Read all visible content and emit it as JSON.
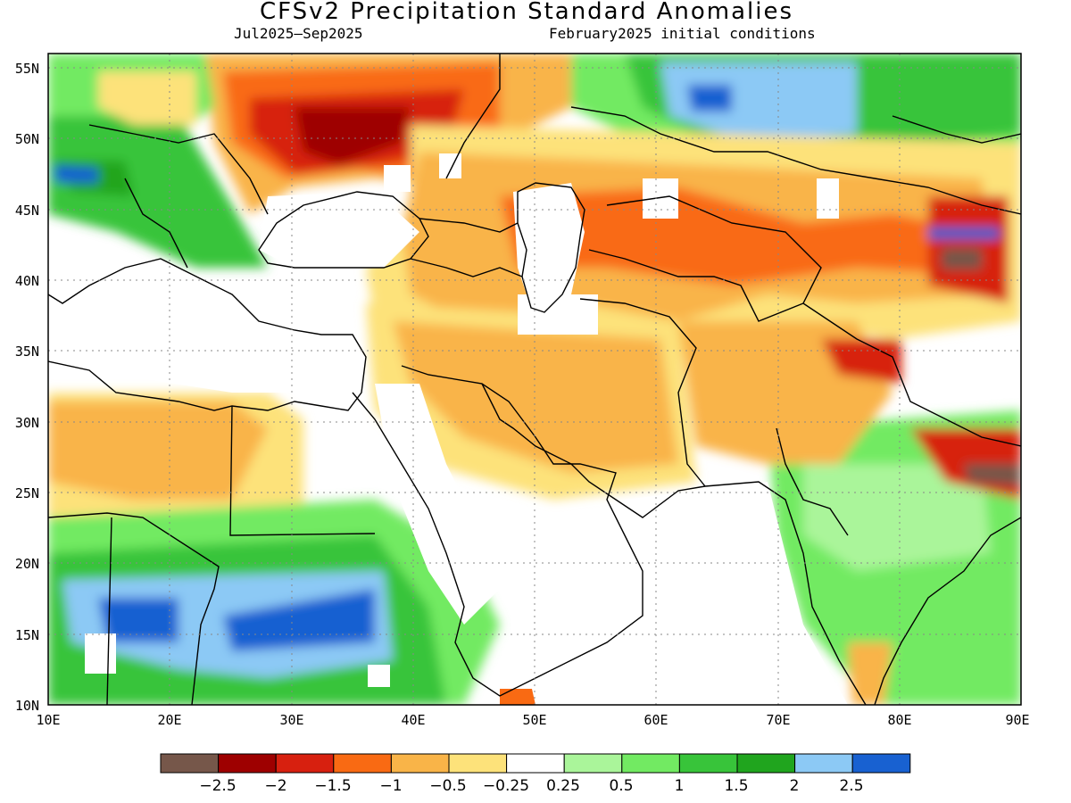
{
  "title": "CFSv2 Precipitation Standard Anomalies",
  "subtitle_period": "Jul2025–Sep2025",
  "subtitle_init": "February2025 initial conditions",
  "map": {
    "lon_range": [
      10,
      90
    ],
    "lat_range": [
      10,
      56
    ],
    "lon_ticks": [
      "10E",
      "20E",
      "30E",
      "40E",
      "50E",
      "60E",
      "70E",
      "80E",
      "90E"
    ],
    "lat_ticks": [
      "10N",
      "15N",
      "20N",
      "25N",
      "30N",
      "35N",
      "40N",
      "45N",
      "50N",
      "55N"
    ],
    "grid": "dotted"
  },
  "colorbar": {
    "colors": [
      "#76574a",
      "#9e0000",
      "#d7200f",
      "#f96a13",
      "#f9b448",
      "#fde27a",
      "#ffffff",
      "#aaf59a",
      "#72ea62",
      "#38c43a",
      "#20a51e",
      "#8cc9f5",
      "#1861d1"
    ],
    "labels": [
      "−2.5",
      "−2",
      "−1.5",
      "−1",
      "−0.5",
      "−0.25",
      "0.25",
      "0.5",
      "1",
      "1.5",
      "2",
      "2.5"
    ]
  },
  "regions": [
    {
      "name": "ukraine-russia-dry",
      "level": -1.5,
      "color": "#d7200f"
    },
    {
      "name": "sahel-wet",
      "level": 2.5,
      "color": "#1861d1"
    },
    {
      "name": "central-asia-wet",
      "level": 2.5,
      "color": "#1861d1"
    },
    {
      "name": "nepal-dry",
      "level": -2.5,
      "color": "#76574a"
    }
  ]
}
